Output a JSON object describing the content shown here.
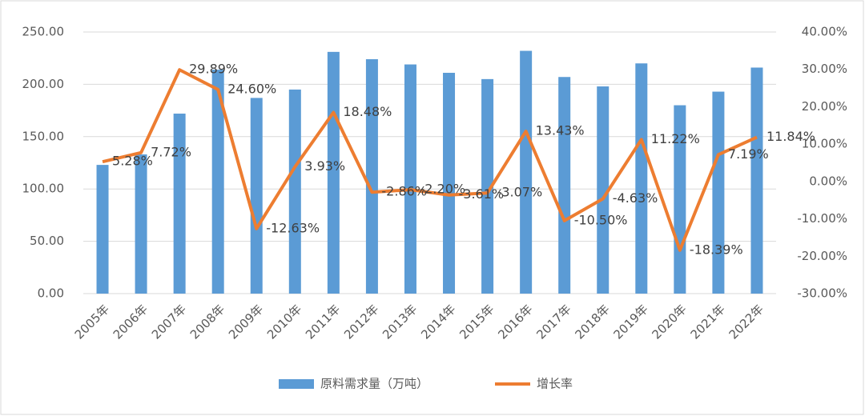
{
  "chart_data": {
    "type": "bar_line",
    "categories": [
      "2005年",
      "2006年",
      "2007年",
      "2008年",
      "2009年",
      "2010年",
      "2011年",
      "2012年",
      "2013年",
      "2014年",
      "2015年",
      "2016年",
      "2017年",
      "2018年",
      "2019年",
      "2020年",
      "2021年",
      "2022年"
    ],
    "series": [
      {
        "name": "原料需求量（万吨）",
        "type": "bar",
        "color": "#5b9bd5",
        "values": [
          123,
          133,
          172,
          214,
          187,
          195,
          231,
          224,
          219,
          211,
          205,
          232,
          207,
          198,
          220,
          180,
          193,
          216
        ]
      },
      {
        "name": "增长率",
        "type": "line",
        "axis": "y2",
        "color": "#ed7d31",
        "values": [
          5.28,
          7.72,
          29.89,
          24.6,
          -12.63,
          3.93,
          18.48,
          -2.86,
          -2.2,
          -3.61,
          -3.07,
          13.43,
          -10.5,
          -4.63,
          11.22,
          -18.39,
          7.19,
          11.84
        ],
        "value_labels": [
          "5.28%",
          "7.72%",
          "29.89%",
          "24.60%",
          "-12.63%",
          "3.93%",
          "18.48%",
          "-2.86%",
          "-2.20%",
          "-3.61%",
          "-3.07%",
          "13.43%",
          "-10.50%",
          "-4.63%",
          "11.22%",
          "-18.39%",
          "7.19%",
          "11.84%"
        ]
      }
    ],
    "ylim": [
      0,
      250
    ],
    "yticks": [
      {
        "value": 0,
        "label": "0.00"
      },
      {
        "value": 50,
        "label": "50.00"
      },
      {
        "value": 100,
        "label": "100.00"
      },
      {
        "value": 150,
        "label": "150.00"
      },
      {
        "value": 200,
        "label": "200.00"
      },
      {
        "value": 250,
        "label": "250.00"
      }
    ],
    "y2lim": [
      -30,
      40
    ],
    "y2ticks": [
      {
        "value": -30,
        "label": "-30.00%"
      },
      {
        "value": -20,
        "label": "-20.00%"
      },
      {
        "value": -10,
        "label": "-10.00%"
      },
      {
        "value": 0,
        "label": "0.00%"
      },
      {
        "value": 10,
        "label": "10.00%"
      },
      {
        "value": 20,
        "label": "20.00%"
      },
      {
        "value": 30,
        "label": "30.00%"
      },
      {
        "value": 40,
        "label": "40.00%"
      }
    ],
    "legend": "bottom"
  }
}
